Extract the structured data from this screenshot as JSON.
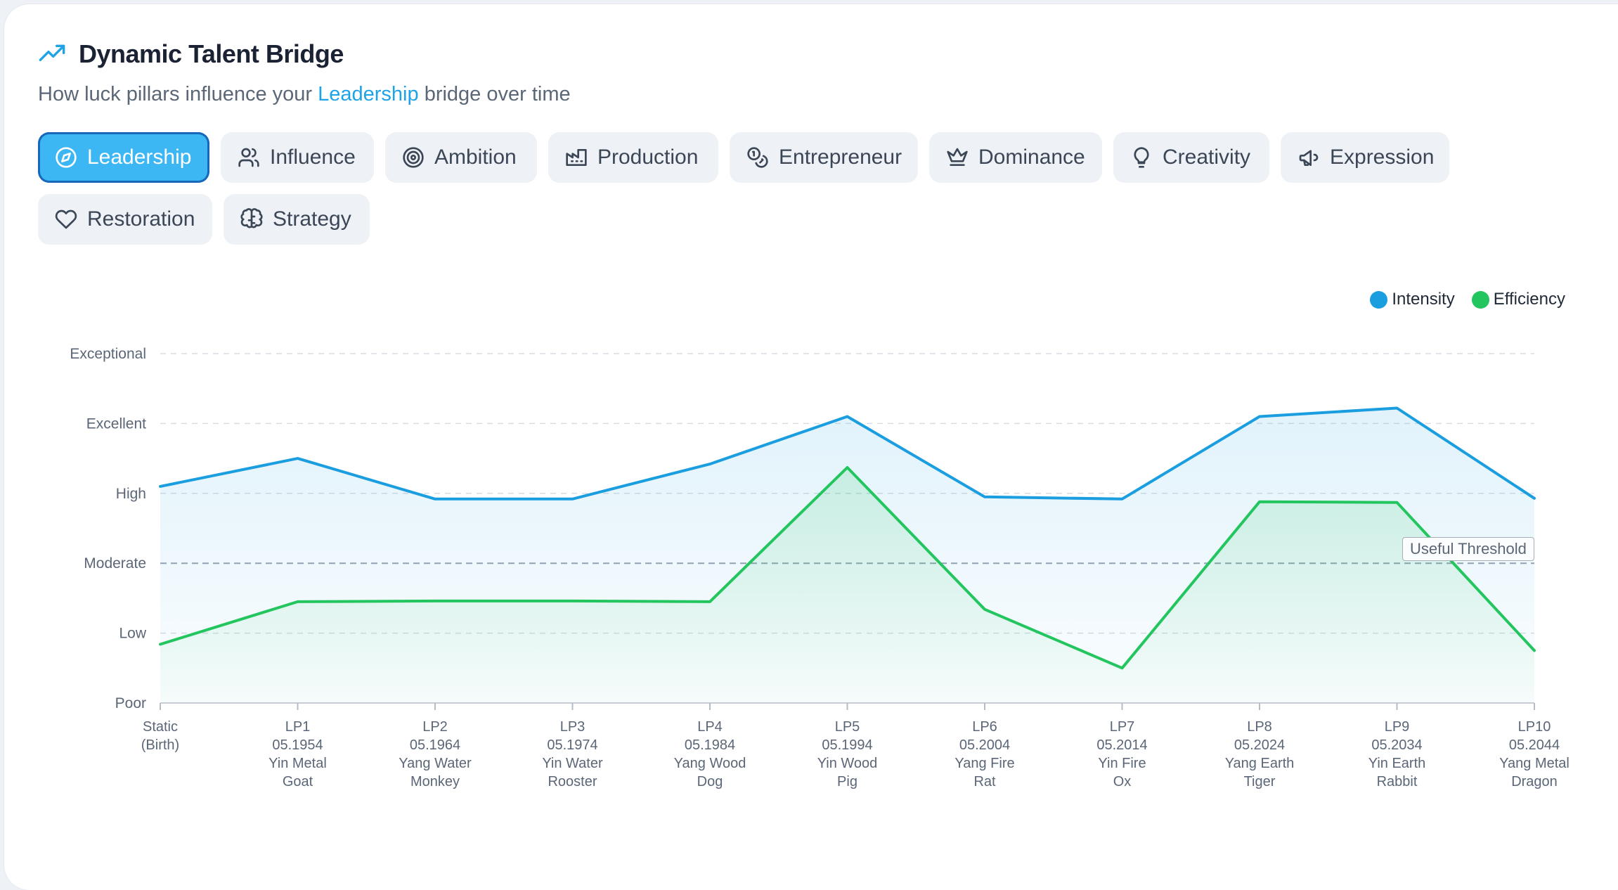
{
  "header": {
    "title": "Dynamic Talent Bridge",
    "subtitle_prefix": "How luck pillars influence your",
    "subtitle_highlight": "Leadership",
    "subtitle_suffix": "bridge over time"
  },
  "tabs": [
    {
      "label": "Leadership",
      "icon": "compass-icon",
      "active": true
    },
    {
      "label": "Influence",
      "icon": "users-icon",
      "active": false
    },
    {
      "label": "Ambition",
      "icon": "target-icon",
      "active": false
    },
    {
      "label": "Production",
      "icon": "factory-icon",
      "active": false
    },
    {
      "label": "Entrepreneur",
      "icon": "coins-icon",
      "active": false
    },
    {
      "label": "Dominance",
      "icon": "crown-icon",
      "active": false
    },
    {
      "label": "Creativity",
      "icon": "lightbulb-icon",
      "active": false
    },
    {
      "label": "Expression",
      "icon": "megaphone-icon",
      "active": false
    },
    {
      "label": "Restoration",
      "icon": "heart-icon",
      "active": false
    },
    {
      "label": "Strategy",
      "icon": "brain-icon",
      "active": false
    }
  ],
  "colors": {
    "intensity": "#1a9ee0",
    "efficiency": "#22c55e",
    "active_tab": "#3db6f4",
    "highlight": "#1ea3e6"
  },
  "chart_data": {
    "type": "line",
    "title": "",
    "legend_position": "top-right",
    "grid": true,
    "y_levels": [
      "Poor",
      "Low",
      "Moderate",
      "High",
      "Excellent",
      "Exceptional"
    ],
    "ylim": [
      0,
      5
    ],
    "threshold": {
      "label": "Useful Threshold",
      "value": 2
    },
    "categories": [
      [
        "Static",
        "(Birth)"
      ],
      [
        "LP1",
        "05.1954",
        "Yin Metal",
        "Goat"
      ],
      [
        "LP2",
        "05.1964",
        "Yang Water",
        "Monkey"
      ],
      [
        "LP3",
        "05.1974",
        "Yin Water",
        "Rooster"
      ],
      [
        "LP4",
        "05.1984",
        "Yang Wood",
        "Dog"
      ],
      [
        "LP5",
        "05.1994",
        "Yin Wood",
        "Pig"
      ],
      [
        "LP6",
        "05.2004",
        "Yang Fire",
        "Rat"
      ],
      [
        "LP7",
        "05.2014",
        "Yin Fire",
        "Ox"
      ],
      [
        "LP8",
        "05.2024",
        "Yang Earth",
        "Tiger"
      ],
      [
        "LP9",
        "05.2034",
        "Yin Earth",
        "Rabbit"
      ],
      [
        "LP10",
        "05.2044",
        "Yang Metal",
        "Dragon"
      ]
    ],
    "series": [
      {
        "name": "Intensity",
        "values": [
          3.1,
          3.5,
          2.92,
          2.92,
          3.42,
          4.1,
          2.95,
          2.92,
          4.1,
          4.22,
          2.93
        ]
      },
      {
        "name": "Efficiency",
        "values": [
          0.84,
          1.45,
          1.46,
          1.46,
          1.45,
          3.37,
          1.34,
          0.5,
          2.88,
          2.87,
          0.75
        ]
      }
    ]
  }
}
